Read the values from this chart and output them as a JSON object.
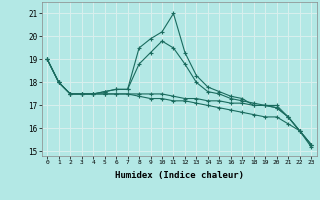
{
  "xlabel": "Humidex (Indice chaleur)",
  "background_color": "#b3e8e5",
  "grid_color": "#d9f0ee",
  "line_color": "#1a6b5e",
  "xlim": [
    -0.5,
    23.5
  ],
  "ylim": [
    14.8,
    21.5
  ],
  "yticks": [
    15,
    16,
    17,
    18,
    19,
    20,
    21
  ],
  "xticks": [
    0,
    1,
    2,
    3,
    4,
    5,
    6,
    7,
    8,
    9,
    10,
    11,
    12,
    13,
    14,
    15,
    16,
    17,
    18,
    19,
    20,
    21,
    22,
    23
  ],
  "series": [
    [
      19.0,
      18.0,
      17.5,
      17.5,
      17.5,
      17.6,
      17.7,
      17.7,
      19.5,
      19.9,
      20.2,
      21.0,
      19.3,
      18.3,
      17.8,
      17.6,
      17.4,
      17.3,
      17.0,
      17.0,
      16.9,
      16.5,
      15.9,
      15.3
    ],
    [
      19.0,
      18.0,
      17.5,
      17.5,
      17.5,
      17.6,
      17.7,
      17.7,
      18.8,
      19.3,
      19.8,
      19.5,
      18.8,
      18.0,
      17.6,
      17.5,
      17.3,
      17.2,
      17.1,
      17.0,
      17.0,
      16.5,
      15.9,
      15.3
    ],
    [
      19.0,
      18.0,
      17.5,
      17.5,
      17.5,
      17.5,
      17.5,
      17.5,
      17.5,
      17.5,
      17.5,
      17.4,
      17.3,
      17.3,
      17.2,
      17.2,
      17.1,
      17.1,
      17.0,
      17.0,
      16.9,
      16.5,
      15.9,
      15.3
    ],
    [
      19.0,
      18.0,
      17.5,
      17.5,
      17.5,
      17.5,
      17.5,
      17.5,
      17.4,
      17.3,
      17.3,
      17.2,
      17.2,
      17.1,
      17.0,
      16.9,
      16.8,
      16.7,
      16.6,
      16.5,
      16.5,
      16.2,
      15.9,
      15.2
    ]
  ]
}
